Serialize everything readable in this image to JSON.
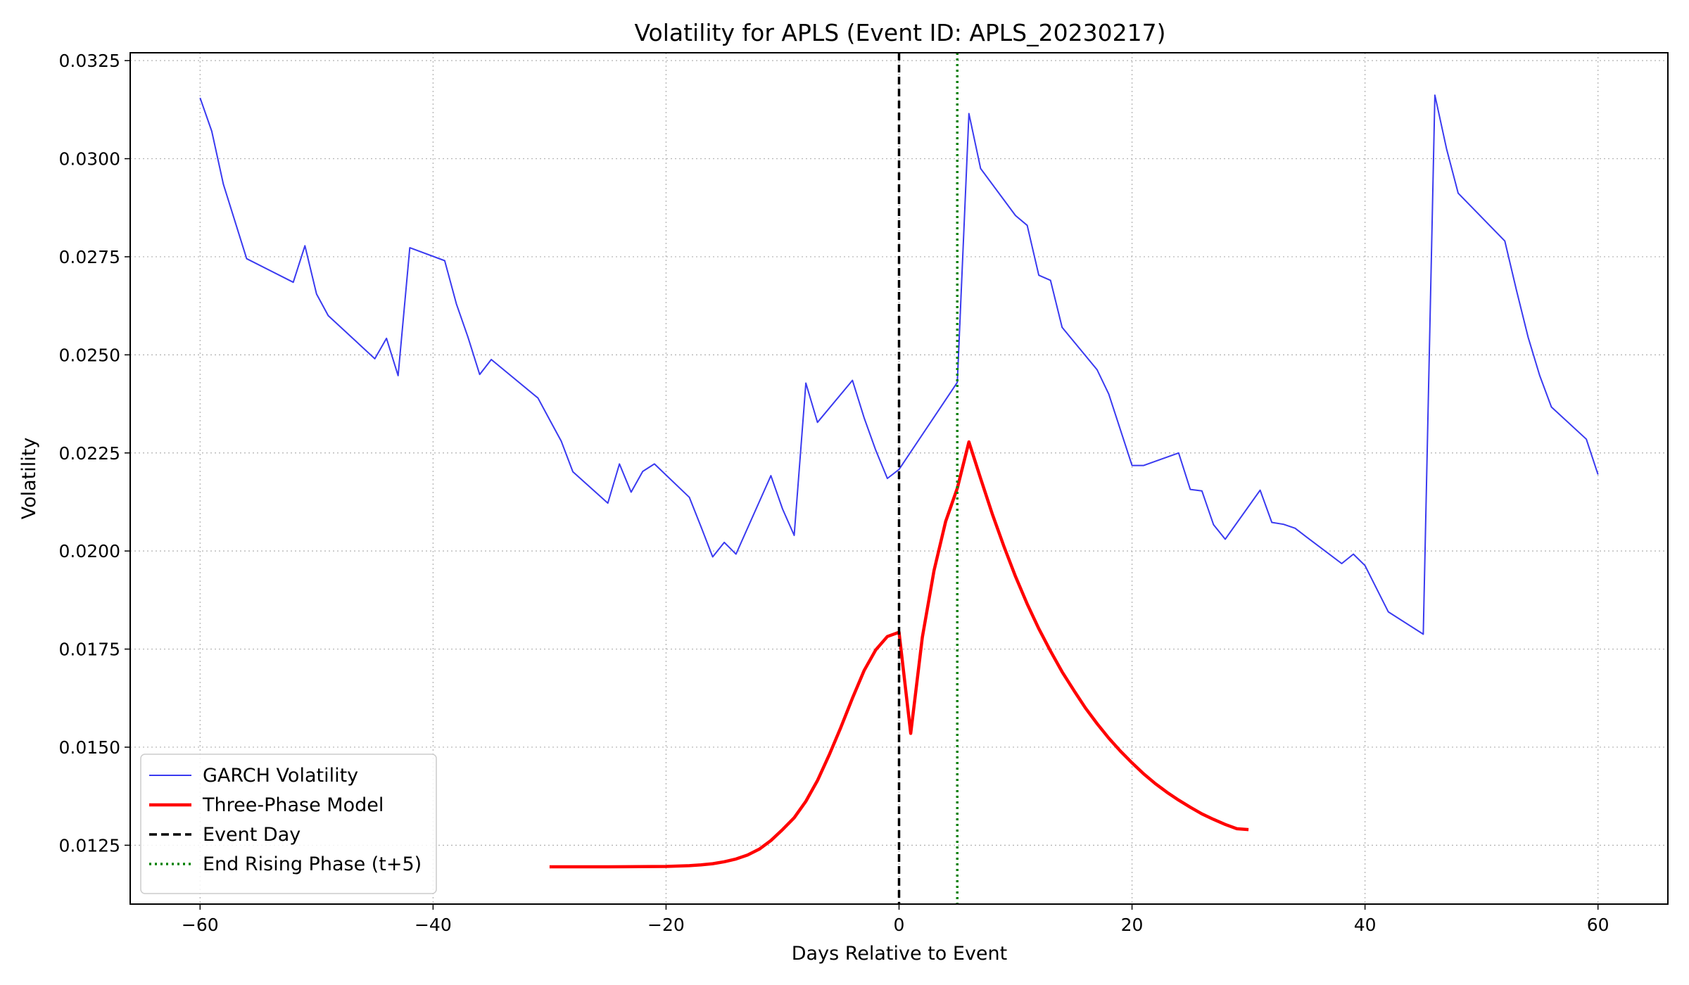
{
  "chart_data": {
    "type": "line",
    "title": "Volatility for APLS (Event ID: APLS_20230217)",
    "xlabel": "Days Relative to Event",
    "ylabel": "Volatility",
    "xlim": [
      -66,
      66
    ],
    "ylim": [
      0.011,
      0.0327
    ],
    "xticks": [
      -60,
      -40,
      -20,
      0,
      20,
      40,
      60
    ],
    "xtick_labels": [
      "−60",
      "−40",
      "−20",
      "0",
      "20",
      "40",
      "60"
    ],
    "yticks": [
      0.0125,
      0.015,
      0.0175,
      0.02,
      0.0225,
      0.025,
      0.0275,
      0.03,
      0.0325
    ],
    "ytick_labels": [
      "0.0125",
      "0.0150",
      "0.0175",
      "0.0200",
      "0.0225",
      "0.0250",
      "0.0275",
      "0.0300",
      "0.0325"
    ],
    "grid": true,
    "legend_position": "lower-left",
    "series": [
      {
        "name": "GARCH Volatility",
        "color": "#3a3af0",
        "style": "solid-thin",
        "points": [
          [
            -60,
            0.03155
          ],
          [
            -59,
            0.0307
          ],
          [
            -58,
            0.02935
          ],
          [
            -56,
            0.02745
          ],
          [
            -52,
            0.02685
          ],
          [
            -51,
            0.02778
          ],
          [
            -50,
            0.02655
          ],
          [
            -49,
            0.026
          ],
          [
            -45,
            0.0249
          ],
          [
            -44,
            0.02542
          ],
          [
            -43,
            0.02447
          ],
          [
            -42,
            0.02773
          ],
          [
            -39,
            0.0274
          ],
          [
            -38,
            0.0263
          ],
          [
            -37,
            0.02545
          ],
          [
            -36,
            0.0245
          ],
          [
            -35,
            0.02488
          ],
          [
            -31,
            0.0239
          ],
          [
            -30,
            0.02335
          ],
          [
            -29,
            0.0228
          ],
          [
            -28,
            0.02202
          ],
          [
            -25,
            0.02122
          ],
          [
            -24,
            0.02222
          ],
          [
            -23,
            0.0215
          ],
          [
            -22,
            0.02203
          ],
          [
            -21,
            0.02222
          ],
          [
            -18,
            0.02137
          ],
          [
            -17,
            0.02062
          ],
          [
            -16,
            0.01985
          ],
          [
            -15,
            0.02022
          ],
          [
            -14,
            0.01992
          ],
          [
            -11,
            0.02192
          ],
          [
            -10,
            0.02107
          ],
          [
            -9,
            0.0204
          ],
          [
            -8,
            0.02428
          ],
          [
            -7,
            0.02328
          ],
          [
            -4,
            0.02435
          ],
          [
            -3,
            0.0234
          ],
          [
            -2,
            0.02257
          ],
          [
            -1,
            0.02185
          ],
          [
            0,
            0.02208
          ],
          [
            5,
            0.0243
          ],
          [
            6,
            0.03115
          ],
          [
            7,
            0.02975
          ],
          [
            10,
            0.02855
          ],
          [
            11,
            0.0283
          ],
          [
            12,
            0.02703
          ],
          [
            13,
            0.0269
          ],
          [
            14,
            0.0257
          ],
          [
            17,
            0.02462
          ],
          [
            18,
            0.024
          ],
          [
            20,
            0.02218
          ],
          [
            21,
            0.02218
          ],
          [
            24,
            0.0225
          ],
          [
            25,
            0.02157
          ],
          [
            26,
            0.02153
          ],
          [
            27,
            0.02067
          ],
          [
            28,
            0.0203
          ],
          [
            31,
            0.02155
          ],
          [
            32,
            0.02073
          ],
          [
            33,
            0.02068
          ],
          [
            34,
            0.02058
          ],
          [
            35,
            0.02035
          ],
          [
            38,
            0.01968
          ],
          [
            39,
            0.01992
          ],
          [
            40,
            0.01963
          ],
          [
            42,
            0.01845
          ],
          [
            45,
            0.01788
          ],
          [
            46,
            0.03162
          ],
          [
            47,
            0.03025
          ],
          [
            48,
            0.02912
          ],
          [
            52,
            0.0279
          ],
          [
            53,
            0.02665
          ],
          [
            54,
            0.02545
          ],
          [
            55,
            0.02447
          ],
          [
            56,
            0.02367
          ],
          [
            59,
            0.02285
          ],
          [
            60,
            0.02195
          ]
        ]
      },
      {
        "name": "Three-Phase Model",
        "color": "#ff0000",
        "style": "solid-thick",
        "points": [
          [
            -30,
            0.01195
          ],
          [
            -25,
            0.01195
          ],
          [
            -20,
            0.01196
          ],
          [
            -18,
            0.01198
          ],
          [
            -17,
            0.012
          ],
          [
            -16,
            0.01203
          ],
          [
            -15,
            0.01208
          ],
          [
            -14,
            0.01215
          ],
          [
            -13,
            0.01225
          ],
          [
            -12,
            0.0124
          ],
          [
            -11,
            0.01262
          ],
          [
            -10,
            0.0129
          ],
          [
            -9,
            0.0132
          ],
          [
            -8,
            0.01362
          ],
          [
            -7,
            0.01415
          ],
          [
            -6,
            0.0148
          ],
          [
            -5,
            0.0155
          ],
          [
            -4,
            0.01625
          ],
          [
            -3,
            0.01695
          ],
          [
            -2,
            0.01748
          ],
          [
            -1,
            0.01782
          ],
          [
            0,
            0.01793
          ],
          [
            1,
            0.01535
          ],
          [
            2,
            0.0178
          ],
          [
            3,
            0.0195
          ],
          [
            4,
            0.02075
          ],
          [
            5,
            0.0216
          ],
          [
            6,
            0.02278
          ],
          [
            7,
            0.02185
          ],
          [
            8,
            0.02095
          ],
          [
            9,
            0.02012
          ],
          [
            10,
            0.01935
          ],
          [
            11,
            0.01865
          ],
          [
            12,
            0.01802
          ],
          [
            13,
            0.01745
          ],
          [
            14,
            0.01692
          ],
          [
            15,
            0.01645
          ],
          [
            16,
            0.016
          ],
          [
            17,
            0.0156
          ],
          [
            18,
            0.01523
          ],
          [
            19,
            0.0149
          ],
          [
            20,
            0.0146
          ],
          [
            21,
            0.01432
          ],
          [
            22,
            0.01407
          ],
          [
            23,
            0.01385
          ],
          [
            24,
            0.01365
          ],
          [
            25,
            0.01347
          ],
          [
            26,
            0.0133
          ],
          [
            27,
            0.01316
          ],
          [
            28,
            0.01303
          ],
          [
            29,
            0.01292
          ],
          [
            30,
            0.0129
          ]
        ]
      }
    ],
    "vlines": [
      {
        "name": "Event Day",
        "x": 0,
        "color": "#000000",
        "style": "dashed"
      },
      {
        "name": "End Rising Phase (t+5)",
        "x": 5,
        "color": "#008000",
        "style": "dotted"
      }
    ]
  }
}
